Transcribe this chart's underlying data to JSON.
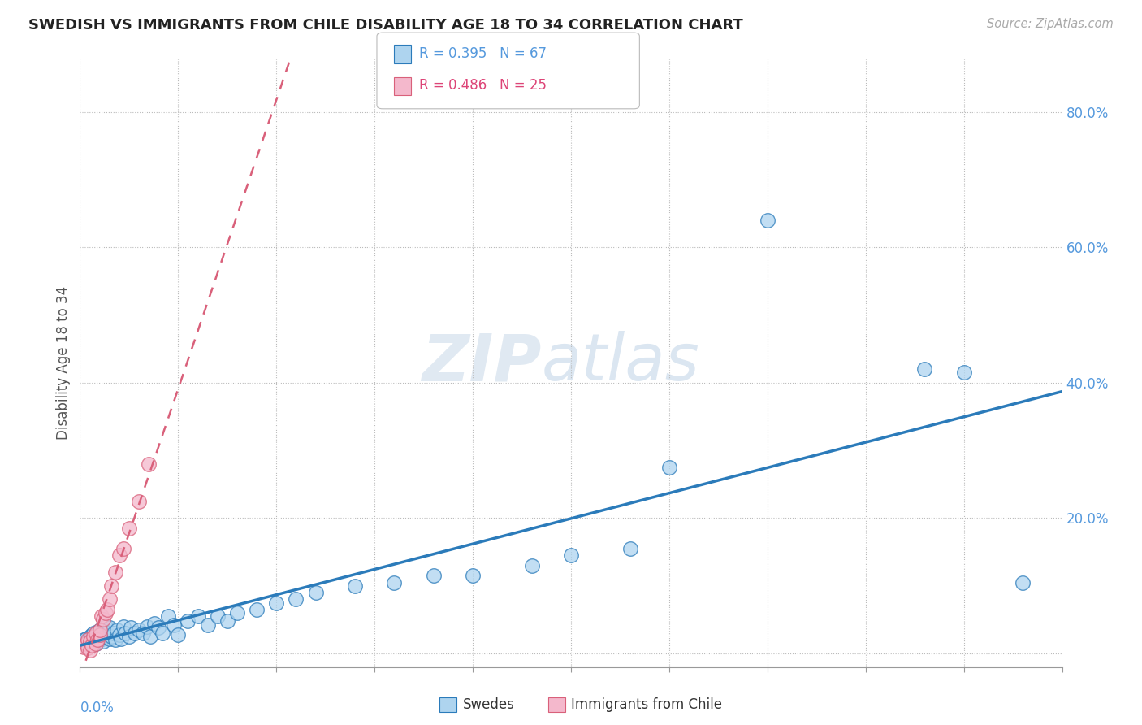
{
  "title": "SWEDISH VS IMMIGRANTS FROM CHILE DISABILITY AGE 18 TO 34 CORRELATION CHART",
  "source": "Source: ZipAtlas.com",
  "ylabel": "Disability Age 18 to 34",
  "xlim": [
    0.0,
    0.5
  ],
  "ylim": [
    -0.02,
    0.88
  ],
  "yticks": [
    0.0,
    0.2,
    0.4,
    0.6,
    0.8
  ],
  "ytick_labels": [
    "",
    "20.0%",
    "40.0%",
    "60.0%",
    "80.0%"
  ],
  "xticks": [
    0.0,
    0.05,
    0.1,
    0.15,
    0.2,
    0.25,
    0.3,
    0.35,
    0.4,
    0.45,
    0.5
  ],
  "legend_r1": "R = 0.395",
  "legend_n1": "N = 67",
  "legend_r2": "R = 0.486",
  "legend_n2": "N = 25",
  "legend_label1": "Swedes",
  "legend_label2": "Immigrants from Chile",
  "color_blue": "#aed4ef",
  "color_pink": "#f4b8cc",
  "color_blue_line": "#2b7bba",
  "color_pink_line": "#d9607a",
  "watermark": "ZIPatlas",
  "background_color": "#ffffff",
  "swedes_x": [
    0.002,
    0.003,
    0.004,
    0.005,
    0.005,
    0.006,
    0.006,
    0.007,
    0.007,
    0.008,
    0.008,
    0.009,
    0.009,
    0.01,
    0.01,
    0.011,
    0.011,
    0.012,
    0.012,
    0.013,
    0.013,
    0.014,
    0.015,
    0.015,
    0.016,
    0.017,
    0.018,
    0.019,
    0.02,
    0.021,
    0.022,
    0.023,
    0.025,
    0.026,
    0.028,
    0.03,
    0.032,
    0.034,
    0.036,
    0.038,
    0.04,
    0.042,
    0.045,
    0.048,
    0.05,
    0.055,
    0.06,
    0.065,
    0.07,
    0.075,
    0.08,
    0.09,
    0.1,
    0.11,
    0.12,
    0.14,
    0.16,
    0.18,
    0.2,
    0.23,
    0.25,
    0.28,
    0.3,
    0.35,
    0.43,
    0.45,
    0.48
  ],
  "swedes_y": [
    0.02,
    0.022,
    0.018,
    0.025,
    0.015,
    0.02,
    0.028,
    0.018,
    0.03,
    0.022,
    0.015,
    0.025,
    0.032,
    0.02,
    0.035,
    0.022,
    0.028,
    0.018,
    0.035,
    0.025,
    0.04,
    0.03,
    0.022,
    0.038,
    0.025,
    0.03,
    0.02,
    0.035,
    0.028,
    0.022,
    0.04,
    0.03,
    0.025,
    0.038,
    0.03,
    0.035,
    0.03,
    0.04,
    0.025,
    0.045,
    0.038,
    0.03,
    0.055,
    0.042,
    0.028,
    0.048,
    0.055,
    0.042,
    0.055,
    0.048,
    0.06,
    0.065,
    0.075,
    0.08,
    0.09,
    0.1,
    0.105,
    0.115,
    0.115,
    0.13,
    0.145,
    0.155,
    0.275,
    0.64,
    0.42,
    0.415,
    0.105
  ],
  "chile_x": [
    0.002,
    0.003,
    0.004,
    0.004,
    0.005,
    0.005,
    0.006,
    0.007,
    0.008,
    0.008,
    0.009,
    0.01,
    0.01,
    0.011,
    0.012,
    0.013,
    0.014,
    0.015,
    0.016,
    0.018,
    0.02,
    0.022,
    0.025,
    0.03,
    0.035
  ],
  "chile_y": [
    0.01,
    0.015,
    0.02,
    0.008,
    0.018,
    0.005,
    0.012,
    0.025,
    0.015,
    0.03,
    0.02,
    0.028,
    0.035,
    0.055,
    0.05,
    0.06,
    0.065,
    0.08,
    0.1,
    0.12,
    0.145,
    0.155,
    0.185,
    0.225,
    0.28
  ]
}
